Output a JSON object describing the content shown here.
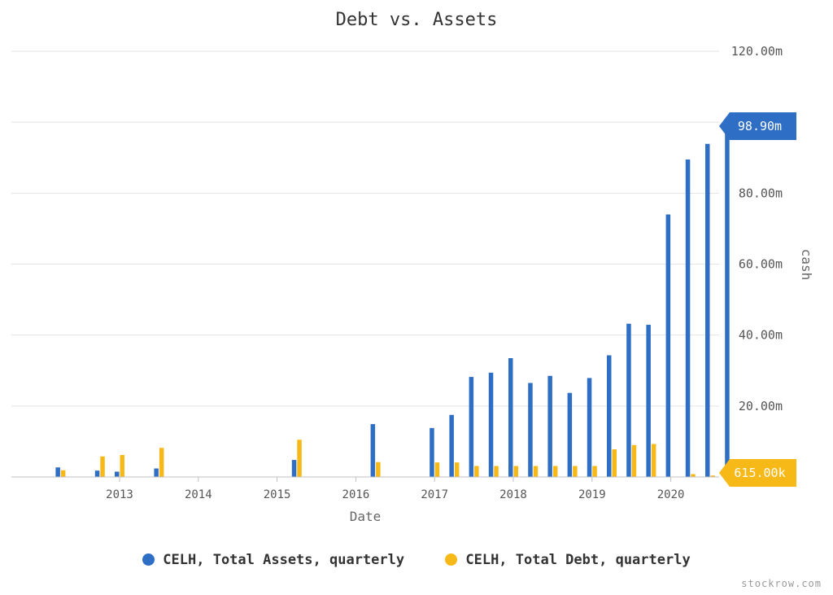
{
  "credit": "stockrow.com",
  "chart_data": {
    "type": "bar",
    "title": "Debt vs. Assets",
    "xlabel": "Date",
    "ylabel": "cash",
    "ylim": [
      0,
      120
    ],
    "y_ticks": [
      {
        "value": 20,
        "label": "20.00m"
      },
      {
        "value": 40,
        "label": "40.00m"
      },
      {
        "value": 60,
        "label": "60.00m"
      },
      {
        "value": 80,
        "label": "80.00m"
      },
      {
        "value": 120,
        "label": "120.00m"
      }
    ],
    "x_ticks": [
      "2013",
      "2014",
      "2015",
      "2016",
      "2017",
      "2018",
      "2019",
      "2020"
    ],
    "grid": true,
    "legend_position": "bottom",
    "periods": [
      "2012-Q1",
      "2012-Q3",
      "2012-Q4",
      "2013-Q2",
      "2015-Q1",
      "2016-Q1",
      "2016-Q4",
      "2017-Q1",
      "2017-Q2",
      "2017-Q3",
      "2017-Q4",
      "2018-Q1",
      "2018-Q2",
      "2018-Q3",
      "2018-Q4",
      "2019-Q1",
      "2019-Q2",
      "2019-Q3",
      "2019-Q4",
      "2020-Q1",
      "2020-Q2",
      "2020-Q3"
    ],
    "series": [
      {
        "name": "CELH, Total Assets, quarterly",
        "color": "#2e6ec5",
        "values": [
          2.7,
          1.8,
          1.5,
          2.4,
          4.8,
          14.9,
          13.8,
          17.5,
          28.2,
          29.4,
          33.5,
          26.5,
          28.5,
          23.7,
          27.9,
          34.3,
          43.2,
          42.9,
          74.0,
          89.5,
          93.9,
          98.9
        ]
      },
      {
        "name": "CELH, Total Debt, quarterly",
        "color": "#f7b918",
        "values": [
          1.9,
          5.8,
          6.2,
          8.2,
          10.5,
          4.2,
          4.1,
          4.1,
          3.1,
          3.1,
          3.1,
          3.1,
          3.1,
          3.1,
          3.1,
          7.8,
          9.0,
          9.3,
          0.0,
          0.8,
          0.4,
          0.615
        ]
      }
    ],
    "flags": [
      {
        "series": 0,
        "label": "98.90m",
        "value": 98.9,
        "color": "#2e6ec5"
      },
      {
        "series": 1,
        "label": "615.00k",
        "value": 0.615,
        "color": "#f7b918"
      }
    ]
  }
}
